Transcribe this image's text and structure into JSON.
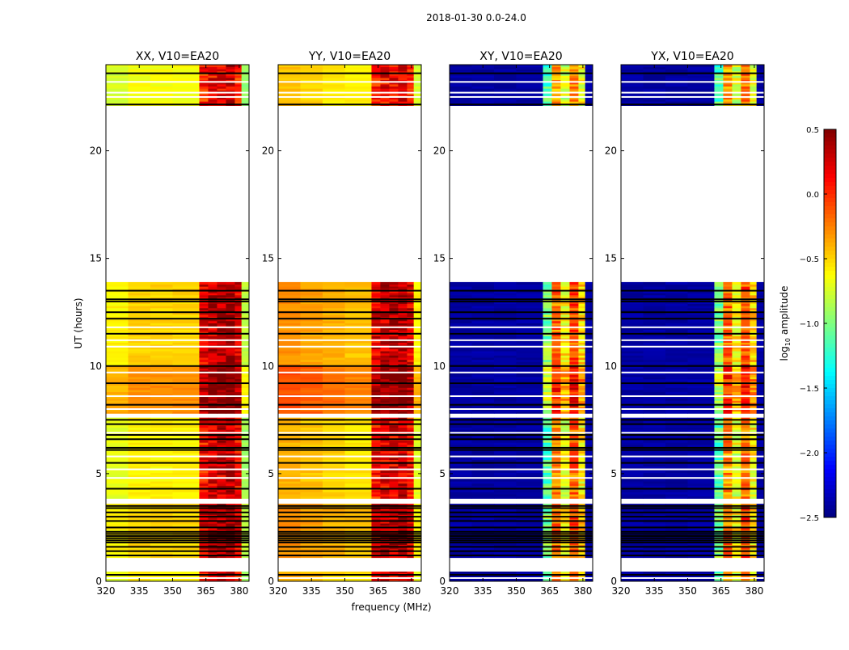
{
  "chart_data": {
    "type": "heatmap",
    "title": "2018-01-30 0.0-24.0",
    "xlabel": "frequency (MHz)",
    "ylabel": "UT (hours)",
    "xlim": [
      320,
      384.4
    ],
    "ylim": [
      0,
      24
    ],
    "xticks": [
      320,
      335,
      350,
      365,
      380
    ],
    "yticks": [
      0,
      5,
      10,
      15,
      20
    ],
    "colorbar": {
      "label": "log",
      "label_sub": "10",
      "label_suffix": " amplitude",
      "range": [
        -2.5,
        0.5
      ],
      "ticks": [
        "0.5",
        "0.0",
        "−0.5",
        "−1.0",
        "−1.5",
        "−2.0",
        "−2.5"
      ],
      "tick_values": [
        0.5,
        0.0,
        -0.5,
        -1.0,
        -1.5,
        -2.0,
        -2.5
      ],
      "colormap": "jet"
    },
    "freq_bin_edges": [
      320,
      330,
      340,
      350,
      362,
      366,
      370,
      374,
      378,
      381,
      384.4
    ],
    "panels": [
      {
        "title": "XX, V10=EA20",
        "spectrum": [
          -0.7,
          -0.6,
          -0.6,
          -0.6,
          0.1,
          0.2,
          0.25,
          0.3,
          0.1,
          -0.9
        ]
      },
      {
        "title": "YY, V10=EA20",
        "spectrum": [
          -0.4,
          -0.45,
          -0.5,
          -0.55,
          0.1,
          0.2,
          0.2,
          0.25,
          0.1,
          -0.7
        ]
      },
      {
        "title": "XY, V10=EA20",
        "spectrum": [
          -2.4,
          -2.4,
          -2.4,
          -2.4,
          -1.1,
          -0.3,
          -0.7,
          -0.2,
          -0.6,
          -2.4
        ]
      },
      {
        "title": "YX, V10=EA20",
        "spectrum": [
          -2.4,
          -2.4,
          -2.4,
          -2.4,
          -1.1,
          -0.3,
          -0.7,
          -0.2,
          -0.6,
          -2.4
        ]
      }
    ],
    "time_segments": [
      {
        "t0": 0.0,
        "t1": 0.45,
        "offset": 0.0
      },
      {
        "t0": 1.1,
        "t1": 3.6,
        "offset": 0.1
      },
      {
        "t0": 3.85,
        "t1": 7.6,
        "offset": 0.0
      },
      {
        "t0": 7.8,
        "t1": 10.0,
        "offset": 0.3
      },
      {
        "t0": 10.0,
        "t1": 13.9,
        "offset": 0.1
      },
      {
        "t0": 22.1,
        "t1": 24.0,
        "offset": -0.05
      }
    ],
    "flagged_times": [
      0.3,
      1.2,
      1.4,
      1.6,
      1.8,
      1.9,
      2.0,
      2.1,
      2.2,
      2.3,
      2.5,
      2.8,
      3.0,
      3.2,
      3.4,
      3.5,
      4.3,
      5.5,
      6.1,
      6.2,
      6.6,
      6.8,
      7.3,
      7.5,
      8.2,
      9.2,
      10.0,
      11.5,
      12.2,
      12.5,
      13.0,
      13.1,
      13.5,
      22.15,
      23.6
    ],
    "gap_lines": [
      0.15,
      4.8,
      5.2,
      5.8,
      6.9,
      8.0,
      8.6,
      9.7,
      10.9,
      11.2,
      11.8,
      22.5,
      22.7,
      23.2
    ]
  }
}
